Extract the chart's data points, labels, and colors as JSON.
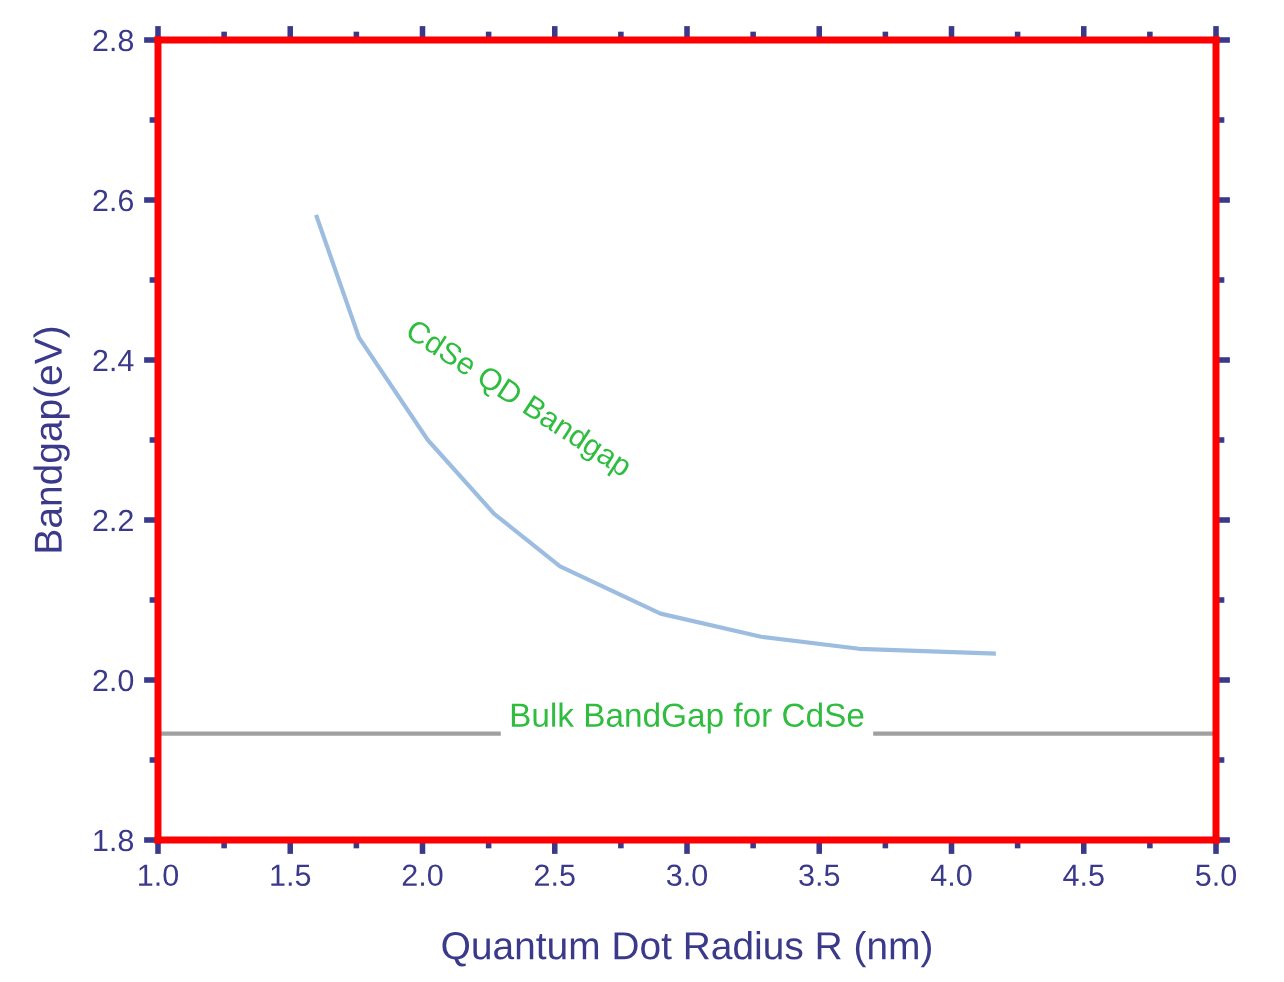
{
  "chart_data": {
    "type": "line",
    "xlabel": "Quantum Dot Radius R (nm)",
    "ylabel": "Bandgap(eV)",
    "x": [
      1.6,
      1.76,
      2.02,
      2.27,
      2.52,
      2.9,
      3.28,
      3.65,
      4.16
    ],
    "series": [
      {
        "color": "#9dbde0",
        "values": [
          2.579,
          2.428,
          2.3,
          2.208,
          2.142,
          2.083,
          2.054,
          2.039,
          2.033
        ]
      }
    ],
    "xlim": [
      1.0,
      5.0
    ],
    "xticks": [
      {
        "value": 1.0,
        "label": "1.0"
      },
      {
        "value": 1.5,
        "label": "1.5"
      },
      {
        "value": 2.0,
        "label": "2.0"
      },
      {
        "value": 2.5,
        "label": "2.5"
      },
      {
        "value": 3.0,
        "label": "3.0"
      },
      {
        "value": 3.5,
        "label": "3.5"
      },
      {
        "value": 4.0,
        "label": "4.0"
      },
      {
        "value": 4.5,
        "label": "4.5"
      },
      {
        "value": 5.0,
        "label": "5.0"
      }
    ],
    "ylim": [
      1.8,
      2.8
    ],
    "yticks": [
      1.8,
      {
        "value": 2.0,
        "label": "2.0"
      },
      2.2,
      2.4,
      2.6,
      2.8
    ],
    "ref_lines": [
      {
        "axis": "y",
        "value": 1.933,
        "label": "Bulk BandGap for CdSe",
        "color": "#a0a0a0"
      }
    ],
    "annotations": [
      "CdSe QD Bandgap"
    ],
    "grid": false,
    "legend": false,
    "marker": "none",
    "line_style": "solid"
  }
}
